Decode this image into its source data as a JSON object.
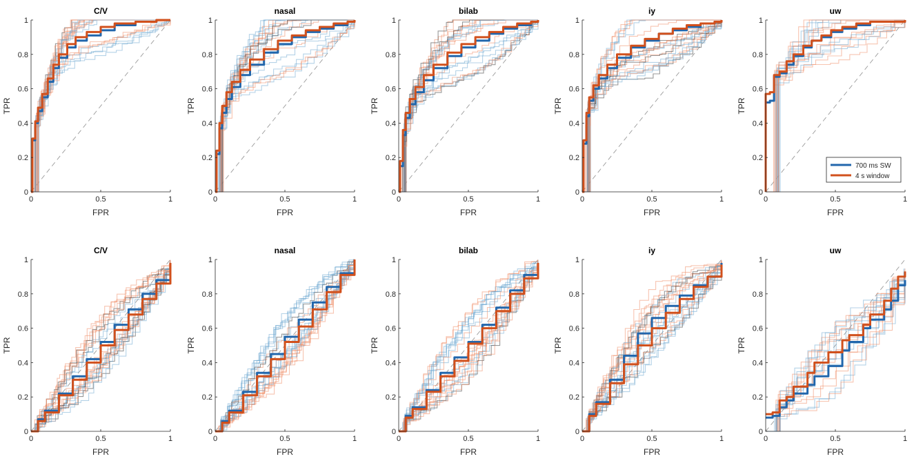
{
  "figure": {
    "colors": {
      "sw": "#2166ac",
      "window": "#d1501c",
      "sw_thin": "#6aa6cf",
      "window_thin": "#ef8a62",
      "dark_thin": "#333333",
      "chance": "#9a9a9a"
    },
    "legend": {
      "entries": [
        "700 ms SW",
        "4 s window"
      ]
    }
  },
  "chart_data": [
    {
      "type": "line",
      "row": 1,
      "col": 1,
      "title": "C/V",
      "xlabel": "FPR",
      "ylabel": "TPR",
      "xlim": [
        0,
        1
      ],
      "ylim": [
        0,
        1
      ],
      "x_ticks": [
        "0",
        "0.5",
        "1"
      ],
      "y_ticks": [
        "0",
        "0.2",
        "0.4",
        "0.6",
        "0.8",
        "1"
      ],
      "legend": false,
      "series": [
        {
          "name": "700 ms SW",
          "x": [
            0,
            0.01,
            0.03,
            0.05,
            0.08,
            0.12,
            0.16,
            0.2,
            0.26,
            0.32,
            0.4,
            0.5,
            0.6,
            0.75,
            0.9,
            1
          ],
          "y": [
            0,
            0.3,
            0.4,
            0.47,
            0.55,
            0.64,
            0.72,
            0.78,
            0.84,
            0.88,
            0.91,
            0.94,
            0.97,
            0.99,
            1,
            1
          ]
        },
        {
          "name": "4 s window",
          "x": [
            0,
            0.01,
            0.03,
            0.05,
            0.08,
            0.12,
            0.16,
            0.2,
            0.26,
            0.32,
            0.4,
            0.5,
            0.6,
            0.75,
            0.9,
            1
          ],
          "y": [
            0,
            0.31,
            0.41,
            0.49,
            0.57,
            0.66,
            0.74,
            0.8,
            0.86,
            0.9,
            0.93,
            0.96,
            0.98,
            0.99,
            1,
            1
          ]
        }
      ]
    },
    {
      "type": "line",
      "row": 1,
      "col": 2,
      "title": "nasal",
      "xlabel": "FPR",
      "ylabel": "TPR",
      "xlim": [
        0,
        1
      ],
      "ylim": [
        0,
        1
      ],
      "x_ticks": [
        "0",
        "0.5",
        "1"
      ],
      "y_ticks": [
        "0",
        "0.2",
        "0.4",
        "0.6",
        "0.8",
        "1"
      ],
      "legend": false,
      "series": [
        {
          "name": "700 ms SW",
          "x": [
            0,
            0.01,
            0.03,
            0.05,
            0.08,
            0.12,
            0.18,
            0.25,
            0.35,
            0.45,
            0.55,
            0.65,
            0.75,
            0.85,
            0.95,
            1
          ],
          "y": [
            0,
            0.22,
            0.37,
            0.46,
            0.54,
            0.61,
            0.68,
            0.74,
            0.81,
            0.86,
            0.9,
            0.93,
            0.95,
            0.97,
            0.99,
            1
          ]
        },
        {
          "name": "4 s window",
          "x": [
            0,
            0.01,
            0.03,
            0.05,
            0.08,
            0.12,
            0.18,
            0.25,
            0.35,
            0.45,
            0.55,
            0.65,
            0.75,
            0.85,
            0.95,
            1
          ],
          "y": [
            0,
            0.24,
            0.4,
            0.5,
            0.58,
            0.64,
            0.71,
            0.77,
            0.83,
            0.88,
            0.91,
            0.94,
            0.96,
            0.98,
            0.99,
            1
          ]
        }
      ]
    },
    {
      "type": "line",
      "row": 1,
      "col": 3,
      "title": "bilab",
      "xlabel": "FPR",
      "ylabel": "TPR",
      "xlim": [
        0,
        1
      ],
      "ylim": [
        0,
        1
      ],
      "x_ticks": [
        "0",
        "0.5",
        "1"
      ],
      "y_ticks": [
        "0",
        "0.2",
        "0.4",
        "0.6",
        "0.8",
        "1"
      ],
      "legend": false,
      "series": [
        {
          "name": "700 ms SW",
          "x": [
            0,
            0.01,
            0.03,
            0.05,
            0.08,
            0.12,
            0.18,
            0.25,
            0.35,
            0.45,
            0.55,
            0.65,
            0.75,
            0.85,
            0.95,
            1
          ],
          "y": [
            0,
            0.15,
            0.33,
            0.43,
            0.51,
            0.58,
            0.65,
            0.72,
            0.79,
            0.84,
            0.88,
            0.92,
            0.95,
            0.97,
            0.99,
            1
          ]
        },
        {
          "name": "4 s window",
          "x": [
            0,
            0.01,
            0.03,
            0.05,
            0.08,
            0.12,
            0.18,
            0.25,
            0.35,
            0.45,
            0.55,
            0.65,
            0.75,
            0.85,
            0.95,
            1
          ],
          "y": [
            0,
            0.18,
            0.36,
            0.46,
            0.54,
            0.61,
            0.68,
            0.74,
            0.81,
            0.86,
            0.9,
            0.93,
            0.96,
            0.98,
            0.99,
            1
          ]
        }
      ]
    },
    {
      "type": "line",
      "row": 1,
      "col": 4,
      "title": "iy",
      "xlabel": "FPR",
      "ylabel": "TPR",
      "xlim": [
        0,
        1
      ],
      "ylim": [
        0,
        1
      ],
      "x_ticks": [
        "0",
        "0.5",
        "1"
      ],
      "y_ticks": [
        "0",
        "0.2",
        "0.4",
        "0.6",
        "0.8",
        "1"
      ],
      "legend": false,
      "series": [
        {
          "name": "700 ms SW",
          "x": [
            0,
            0.01,
            0.03,
            0.05,
            0.08,
            0.12,
            0.18,
            0.25,
            0.35,
            0.45,
            0.55,
            0.65,
            0.75,
            0.85,
            0.95,
            1
          ],
          "y": [
            0,
            0.28,
            0.44,
            0.53,
            0.6,
            0.66,
            0.72,
            0.78,
            0.84,
            0.88,
            0.92,
            0.94,
            0.96,
            0.98,
            0.99,
            1
          ]
        },
        {
          "name": "4 s window",
          "x": [
            0,
            0.01,
            0.03,
            0.05,
            0.08,
            0.12,
            0.18,
            0.25,
            0.35,
            0.45,
            0.55,
            0.65,
            0.75,
            0.85,
            0.95,
            1
          ],
          "y": [
            0,
            0.3,
            0.46,
            0.55,
            0.62,
            0.68,
            0.74,
            0.8,
            0.85,
            0.89,
            0.92,
            0.95,
            0.97,
            0.98,
            0.99,
            1
          ]
        }
      ]
    },
    {
      "type": "line",
      "row": 1,
      "col": 5,
      "title": "uw",
      "xlabel": "FPR",
      "ylabel": "TPR",
      "xlim": [
        0,
        1
      ],
      "ylim": [
        0,
        1
      ],
      "x_ticks": [
        "0",
        "0.5",
        "1"
      ],
      "y_ticks": [
        "0",
        "0.2",
        "0.4",
        "0.6",
        "0.8",
        "1"
      ],
      "legend": true,
      "series": [
        {
          "name": "700 ms SW",
          "x": [
            0,
            0,
            0.03,
            0.06,
            0.1,
            0.15,
            0.2,
            0.27,
            0.33,
            0.4,
            0.47,
            0.55,
            0.65,
            0.75,
            1
          ],
          "y": [
            0,
            0.52,
            0.53,
            0.67,
            0.69,
            0.74,
            0.79,
            0.84,
            0.88,
            0.9,
            0.93,
            0.95,
            0.97,
            0.99,
            1
          ]
        },
        {
          "name": "4 s window",
          "x": [
            0,
            0,
            0.03,
            0.06,
            0.1,
            0.15,
            0.2,
            0.27,
            0.33,
            0.4,
            0.47,
            0.55,
            0.65,
            0.75,
            1
          ],
          "y": [
            0,
            0.57,
            0.58,
            0.68,
            0.7,
            0.76,
            0.8,
            0.85,
            0.88,
            0.91,
            0.94,
            0.96,
            0.98,
            0.99,
            1
          ]
        }
      ]
    },
    {
      "type": "line",
      "row": 2,
      "col": 1,
      "title": "C/V",
      "xlabel": "FPR",
      "ylabel": "TPR",
      "xlim": [
        0,
        1
      ],
      "ylim": [
        0,
        1
      ],
      "x_ticks": [
        "0",
        "0.5",
        "1"
      ],
      "y_ticks": [
        "0",
        "0.2",
        "0.4",
        "0.6",
        "0.8",
        "1"
      ],
      "legend": false,
      "series": [
        {
          "name": "700 ms SW",
          "x": [
            0,
            0.05,
            0.1,
            0.2,
            0.3,
            0.4,
            0.5,
            0.6,
            0.7,
            0.8,
            0.9,
            1
          ],
          "y": [
            0,
            0.07,
            0.12,
            0.22,
            0.32,
            0.42,
            0.52,
            0.62,
            0.71,
            0.8,
            0.88,
            0.98
          ]
        },
        {
          "name": "4 s window",
          "x": [
            0,
            0.05,
            0.1,
            0.2,
            0.3,
            0.4,
            0.5,
            0.6,
            0.7,
            0.8,
            0.9,
            1
          ],
          "y": [
            0,
            0.06,
            0.11,
            0.21,
            0.3,
            0.4,
            0.5,
            0.59,
            0.68,
            0.77,
            0.86,
            0.98
          ]
        }
      ]
    },
    {
      "type": "line",
      "row": 2,
      "col": 2,
      "title": "nasal",
      "xlabel": "FPR",
      "ylabel": "TPR",
      "xlim": [
        0,
        1
      ],
      "ylim": [
        0,
        1
      ],
      "x_ticks": [
        "0",
        "0.5",
        "1"
      ],
      "y_ticks": [
        "0",
        "0.2",
        "0.4",
        "0.6",
        "0.8",
        "1"
      ],
      "legend": false,
      "series": [
        {
          "name": "700 ms SW",
          "x": [
            0,
            0.05,
            0.1,
            0.2,
            0.3,
            0.4,
            0.5,
            0.6,
            0.7,
            0.8,
            0.9,
            1
          ],
          "y": [
            0,
            0.06,
            0.12,
            0.23,
            0.34,
            0.45,
            0.55,
            0.65,
            0.75,
            0.84,
            0.92,
            1
          ]
        },
        {
          "name": "4 s window",
          "x": [
            0,
            0.05,
            0.1,
            0.2,
            0.3,
            0.4,
            0.5,
            0.6,
            0.7,
            0.8,
            0.9,
            1
          ],
          "y": [
            0,
            0.05,
            0.11,
            0.21,
            0.32,
            0.42,
            0.52,
            0.61,
            0.71,
            0.81,
            0.91,
            1
          ]
        }
      ]
    },
    {
      "type": "line",
      "row": 2,
      "col": 3,
      "title": "bilab",
      "xlabel": "FPR",
      "ylabel": "TPR",
      "xlim": [
        0,
        1
      ],
      "ylim": [
        0,
        1
      ],
      "x_ticks": [
        "0",
        "0.5",
        "1"
      ],
      "y_ticks": [
        "0",
        "0.2",
        "0.4",
        "0.6",
        "0.8",
        "1"
      ],
      "legend": false,
      "series": [
        {
          "name": "700 ms SW",
          "x": [
            0,
            0.05,
            0.1,
            0.2,
            0.3,
            0.4,
            0.5,
            0.6,
            0.7,
            0.8,
            0.9,
            1
          ],
          "y": [
            0,
            0.09,
            0.14,
            0.24,
            0.34,
            0.43,
            0.52,
            0.62,
            0.72,
            0.82,
            0.91,
            0.98
          ]
        },
        {
          "name": "4 s window",
          "x": [
            0,
            0.05,
            0.1,
            0.2,
            0.3,
            0.4,
            0.5,
            0.6,
            0.7,
            0.8,
            0.9,
            1
          ],
          "y": [
            0,
            0.08,
            0.13,
            0.23,
            0.32,
            0.41,
            0.51,
            0.6,
            0.7,
            0.8,
            0.89,
            0.98
          ]
        }
      ]
    },
    {
      "type": "line",
      "row": 2,
      "col": 4,
      "title": "iy",
      "xlabel": "FPR",
      "ylabel": "TPR",
      "xlim": [
        0,
        1
      ],
      "ylim": [
        0,
        1
      ],
      "x_ticks": [
        "0",
        "0.5",
        "1"
      ],
      "y_ticks": [
        "0",
        "0.2",
        "0.4",
        "0.6",
        "0.8",
        "1"
      ],
      "legend": false,
      "series": [
        {
          "name": "700 ms SW",
          "x": [
            0,
            0.05,
            0.1,
            0.2,
            0.3,
            0.4,
            0.5,
            0.6,
            0.7,
            0.8,
            0.9,
            1
          ],
          "y": [
            0,
            0.1,
            0.17,
            0.3,
            0.44,
            0.57,
            0.66,
            0.73,
            0.79,
            0.85,
            0.9,
            0.98
          ]
        },
        {
          "name": "4 s window",
          "x": [
            0,
            0.05,
            0.1,
            0.2,
            0.3,
            0.4,
            0.5,
            0.6,
            0.7,
            0.8,
            0.9,
            1
          ],
          "y": [
            0,
            0.09,
            0.16,
            0.28,
            0.39,
            0.5,
            0.6,
            0.69,
            0.77,
            0.84,
            0.9,
            0.97
          ]
        }
      ]
    },
    {
      "type": "line",
      "row": 2,
      "col": 5,
      "title": "uw",
      "xlabel": "FPR",
      "ylabel": "TPR",
      "xlim": [
        0,
        1
      ],
      "ylim": [
        0,
        1
      ],
      "x_ticks": [
        "0",
        "0.5",
        "1"
      ],
      "y_ticks": [
        "0",
        "0.2",
        "0.4",
        "0.6",
        "0.8",
        "1"
      ],
      "legend": false,
      "series": [
        {
          "name": "700 ms SW",
          "x": [
            0,
            0.05,
            0.1,
            0.15,
            0.2,
            0.3,
            0.35,
            0.45,
            0.55,
            0.6,
            0.7,
            0.75,
            0.85,
            0.9,
            0.95,
            1
          ],
          "y": [
            0.08,
            0.09,
            0.14,
            0.18,
            0.22,
            0.27,
            0.32,
            0.38,
            0.47,
            0.52,
            0.6,
            0.65,
            0.71,
            0.76,
            0.85,
            0.88
          ]
        },
        {
          "name": "4 s window",
          "x": [
            0,
            0.05,
            0.1,
            0.15,
            0.2,
            0.3,
            0.35,
            0.45,
            0.55,
            0.6,
            0.7,
            0.75,
            0.85,
            0.9,
            0.95,
            1
          ],
          "y": [
            0.1,
            0.11,
            0.18,
            0.2,
            0.26,
            0.34,
            0.4,
            0.46,
            0.53,
            0.56,
            0.62,
            0.68,
            0.76,
            0.83,
            0.9,
            0.93
          ]
        }
      ]
    }
  ]
}
